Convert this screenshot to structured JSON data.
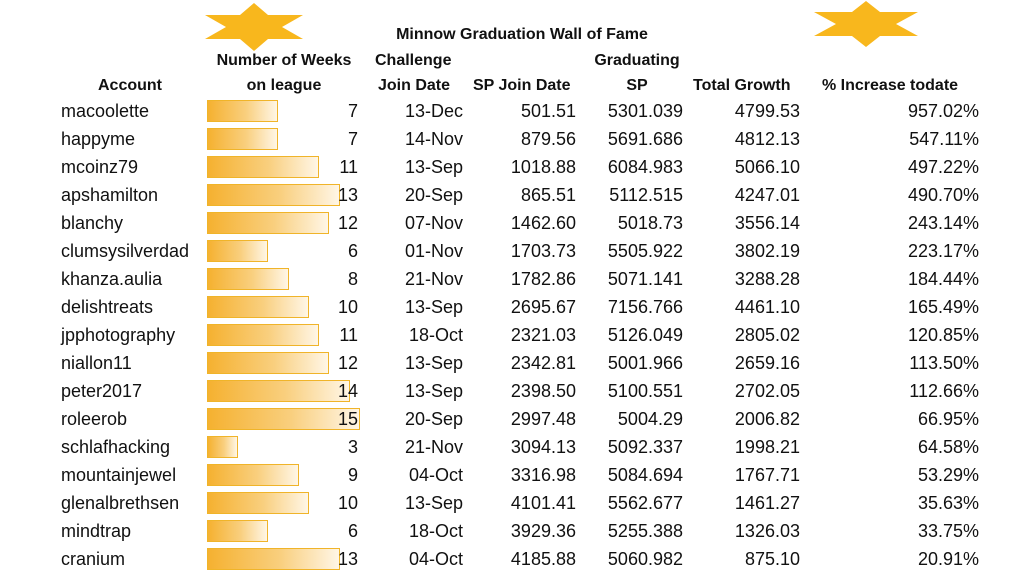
{
  "title": "Minnow Graduation Wall of Fame",
  "headers": {
    "account": "Account",
    "weeks_line1": "Number of Weeks",
    "weeks_line2": "on league",
    "challenge_line1": "Challenge",
    "challenge_line2": "Join Date",
    "sp_join": "SP Join Date",
    "grad_line1": "Graduating",
    "grad_line2": "SP",
    "total_growth": "Total Growth",
    "pct_increase": "% Increase todate"
  },
  "colors": {
    "star": "#f8b71d",
    "bar_start": "#f5b130",
    "bar_end": "#fff6e6",
    "bar_border": "#f0b429"
  },
  "bar_scale_max_weeks": 15,
  "rows": [
    {
      "account": "macoolette",
      "weeks": "7",
      "challenge_join": "13-Dec",
      "sp_join": "501.51",
      "graduating_sp": "5301.039",
      "total_growth": "4799.53",
      "pct_increase": "957.02%"
    },
    {
      "account": "happyme",
      "weeks": "7",
      "challenge_join": "14-Nov",
      "sp_join": "879.56",
      "graduating_sp": "5691.686",
      "total_growth": "4812.13",
      "pct_increase": "547.11%"
    },
    {
      "account": "mcoinz79",
      "weeks": "11",
      "challenge_join": "13-Sep",
      "sp_join": "1018.88",
      "graduating_sp": "6084.983",
      "total_growth": "5066.10",
      "pct_increase": "497.22%"
    },
    {
      "account": "apshamilton",
      "weeks": "13",
      "challenge_join": "20-Sep",
      "sp_join": "865.51",
      "graduating_sp": "5112.515",
      "total_growth": "4247.01",
      "pct_increase": "490.70%"
    },
    {
      "account": "blanchy",
      "weeks": "12",
      "challenge_join": "07-Nov",
      "sp_join": "1462.60",
      "graduating_sp": "5018.73",
      "total_growth": "3556.14",
      "pct_increase": "243.14%"
    },
    {
      "account": "clumsysilverdad",
      "weeks": "6",
      "challenge_join": "01-Nov",
      "sp_join": "1703.73",
      "graduating_sp": "5505.922",
      "total_growth": "3802.19",
      "pct_increase": "223.17%"
    },
    {
      "account": "khanza.aulia",
      "weeks": "8",
      "challenge_join": "21-Nov",
      "sp_join": "1782.86",
      "graduating_sp": "5071.141",
      "total_growth": "3288.28",
      "pct_increase": "184.44%"
    },
    {
      "account": "delishtreats",
      "weeks": "10",
      "challenge_join": "13-Sep",
      "sp_join": "2695.67",
      "graduating_sp": "7156.766",
      "total_growth": "4461.10",
      "pct_increase": "165.49%"
    },
    {
      "account": "jpphotography",
      "weeks": "11",
      "challenge_join": "18-Oct",
      "sp_join": "2321.03",
      "graduating_sp": "5126.049",
      "total_growth": "2805.02",
      "pct_increase": "120.85%"
    },
    {
      "account": "niallon11",
      "weeks": "12",
      "challenge_join": "13-Sep",
      "sp_join": "2342.81",
      "graduating_sp": "5001.966",
      "total_growth": "2659.16",
      "pct_increase": "113.50%"
    },
    {
      "account": "peter2017",
      "weeks": "14",
      "challenge_join": "13-Sep",
      "sp_join": "2398.50",
      "graduating_sp": "5100.551",
      "total_growth": "2702.05",
      "pct_increase": "112.66%"
    },
    {
      "account": "roleerob",
      "weeks": "15",
      "challenge_join": "20-Sep",
      "sp_join": "2997.48",
      "graduating_sp": "5004.29",
      "total_growth": "2006.82",
      "pct_increase": "66.95%"
    },
    {
      "account": "schlafhacking",
      "weeks": "3",
      "challenge_join": "21-Nov",
      "sp_join": "3094.13",
      "graduating_sp": "5092.337",
      "total_growth": "1998.21",
      "pct_increase": "64.58%"
    },
    {
      "account": "mountainjewel",
      "weeks": "9",
      "challenge_join": "04-Oct",
      "sp_join": "3316.98",
      "graduating_sp": "5084.694",
      "total_growth": "1767.71",
      "pct_increase": "53.29%"
    },
    {
      "account": "glenalbrethsen",
      "weeks": "10",
      "challenge_join": "13-Sep",
      "sp_join": "4101.41",
      "graduating_sp": "5562.677",
      "total_growth": "1461.27",
      "pct_increase": "35.63%"
    },
    {
      "account": "mindtrap",
      "weeks": "6",
      "challenge_join": "18-Oct",
      "sp_join": "3929.36",
      "graduating_sp": "5255.388",
      "total_growth": "1326.03",
      "pct_increase": "33.75%"
    },
    {
      "account": "cranium",
      "weeks": "13",
      "challenge_join": "04-Oct",
      "sp_join": "4185.88",
      "graduating_sp": "5060.982",
      "total_growth": "875.10",
      "pct_increase": "20.91%"
    }
  ]
}
